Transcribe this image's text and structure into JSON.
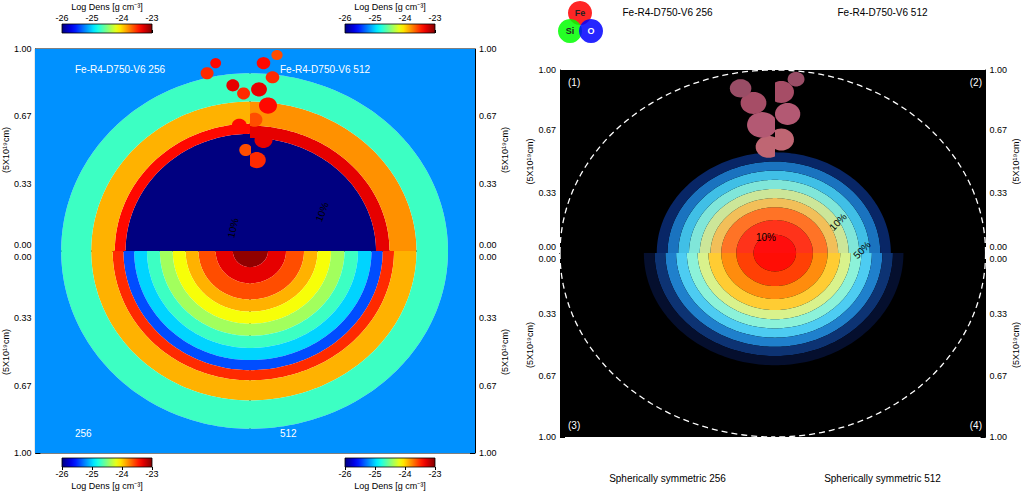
{
  "chart_data": [
    {
      "type": "density_map",
      "xlim": [
        0,
        1
      ],
      "xticks": [
        0,
        0.33,
        0.67,
        1
      ],
      "ylim": [
        0,
        1
      ],
      "yticks": [
        {
          "value": 0,
          "label": "0.00"
        },
        {
          "value": 0.33,
          "label": "0.33"
        },
        {
          "value": 0.67,
          "label": "0.67"
        },
        {
          "value": 1,
          "label": "1.00"
        }
      ],
      "y_label": "(5X10¹⁹cm)",
      "tick_labels": "y",
      "colorbar": {
        "title": "Log Dens [g cm⁻³]",
        "range": [
          -26,
          -23
        ],
        "ticks": [
          -26,
          -25,
          -24,
          -23
        ]
      },
      "quadrants": [
        {
          "title": "Fe-R4-D750-V6 256",
          "profile": {
            "r": [
              0.58,
              0.63,
              0.74,
              0.88,
              1.42
            ],
            "values": [
              -26,
              -23.4,
              -23.9,
              -24.7,
              -25.2
            ]
          },
          "clumps": [
            [
              0.2,
              0.88,
              0.03,
              -23.5
            ],
            [
              0.16,
              0.93,
              0.025,
              -23.4
            ],
            [
              0.02,
              0.5,
              0.03,
              -23.6
            ],
            [
              0.05,
              0.62,
              0.035,
              -23.4
            ],
            [
              0.03,
              0.78,
              0.03,
              -23.5
            ],
            [
              0.08,
              0.82,
              0.03,
              -23.3
            ]
          ]
        },
        {
          "title": "Fe-R4-D750-V6 512",
          "profile": {
            "r": [
              0.56,
              0.62,
              0.74,
              0.88,
              1.42
            ],
            "values": [
              -26,
              -23.3,
              -23.8,
              -24.7,
              -25.2
            ]
          },
          "clumps": [
            [
              0.03,
              0.45,
              0.04,
              -23.5
            ],
            [
              0.06,
              0.55,
              0.04,
              -23.3
            ],
            [
              0.02,
              0.65,
              0.035,
              -23.6
            ],
            [
              0.08,
              0.72,
              0.04,
              -23.4
            ],
            [
              0.04,
              0.8,
              0.035,
              -23.3
            ],
            [
              0.1,
              0.86,
              0.03,
              -23.5
            ],
            [
              0.06,
              0.93,
              0.03,
              -23.4
            ],
            [
              0.12,
              0.97,
              0.025,
              -23.6
            ]
          ]
        },
        {
          "title": "256",
          "profile": {
            "r": [
              0.08,
              0.16,
              0.24,
              0.3,
              0.36,
              0.42,
              0.48,
              0.54,
              0.59,
              0.64,
              0.74,
              0.88,
              1.42
            ],
            "values": [
              -23.05,
              -23.3,
              -23.6,
              -23.9,
              -24.15,
              -24.4,
              -24.7,
              -25.0,
              -25.4,
              -23.5,
              -23.9,
              -24.7,
              -25.2
            ]
          },
          "clumps": []
        },
        {
          "title": "512",
          "profile": {
            "r": [
              0.08,
              0.16,
              0.24,
              0.3,
              0.36,
              0.42,
              0.48,
              0.54,
              0.59,
              0.64,
              0.74,
              0.88,
              1.42
            ],
            "values": [
              -23.05,
              -23.3,
              -23.6,
              -23.9,
              -24.15,
              -24.4,
              -24.7,
              -25.0,
              -25.4,
              -23.5,
              -23.9,
              -24.7,
              -25.2
            ]
          },
          "clumps": []
        }
      ],
      "annotations": [
        "10%",
        "10%"
      ]
    },
    {
      "type": "composition_map",
      "xlim": [
        0,
        1
      ],
      "xticks": [
        0,
        0.33,
        0.67,
        1
      ],
      "ylim": [
        0,
        1
      ],
      "yticks": [
        {
          "value": 0,
          "label": "0.00"
        },
        {
          "value": 0.33,
          "label": "0.33"
        },
        {
          "value": 0.67,
          "label": "0.67"
        },
        {
          "value": 1,
          "label": "1.00"
        }
      ],
      "y_label": "(5X10¹⁹cm)",
      "tick_labels": "y",
      "series": [
        {
          "name": "Fe",
          "color": "#ff0000"
        },
        {
          "name": "Si",
          "color": "#00ff00"
        },
        {
          "name": "O",
          "color": "#0000ff"
        }
      ],
      "shock_radius": 1,
      "quadrants": [
        {
          "label": "(1)",
          "title": "Fe-R4-D750-V6 256",
          "profile": {
            "r": [
              0.1,
              0.18,
              0.25,
              0.3,
              0.35,
              0.4,
              0.45,
              0.5,
              0.55
            ],
            "Fe": [
              1,
              1,
              1,
              0.95,
              0.8,
              0.5,
              0.25,
              0.1,
              0.03
            ],
            "Si": [
              0.05,
              0.2,
              0.45,
              0.75,
              0.9,
              0.9,
              0.75,
              0.45,
              0.15
            ],
            "O": [
              0.05,
              0.1,
              0.15,
              0.35,
              0.6,
              0.85,
              0.9,
              0.75,
              0.4
            ]
          },
          "clumps": [
            [
              0.03,
              0.58,
              0.06,
              0.75,
              0.4,
              0.45
            ],
            [
              0.06,
              0.7,
              0.07,
              0.7,
              0.35,
              0.45
            ],
            [
              0.1,
              0.82,
              0.06,
              0.65,
              0.3,
              0.4
            ],
            [
              0.16,
              0.9,
              0.05,
              0.6,
              0.3,
              0.4
            ]
          ]
        },
        {
          "label": "(2)",
          "title": "Fe-R4-D750-V6 512",
          "profile": {
            "r": [
              0.1,
              0.18,
              0.25,
              0.3,
              0.35,
              0.4,
              0.45,
              0.5,
              0.55
            ],
            "Fe": [
              1,
              1,
              1,
              0.95,
              0.8,
              0.5,
              0.25,
              0.1,
              0.03
            ],
            "Si": [
              0.05,
              0.2,
              0.45,
              0.75,
              0.9,
              0.9,
              0.75,
              0.45,
              0.15
            ],
            "O": [
              0.05,
              0.1,
              0.15,
              0.35,
              0.6,
              0.85,
              0.9,
              0.75,
              0.4
            ]
          },
          "clumps": [
            [
              0.03,
              0.62,
              0.06,
              0.75,
              0.4,
              0.45
            ],
            [
              0.06,
              0.76,
              0.06,
              0.7,
              0.35,
              0.45
            ],
            [
              0.03,
              0.88,
              0.06,
              0.65,
              0.3,
              0.4
            ],
            [
              0.1,
              0.95,
              0.04,
              0.6,
              0.3,
              0.4
            ]
          ]
        },
        {
          "label": "(3)",
          "caption": "Spherically symmetric 256",
          "profile": {
            "r": [
              0.1,
              0.18,
              0.25,
              0.31,
              0.36,
              0.41,
              0.46,
              0.51,
              0.56,
              0.61
            ],
            "Fe": [
              1,
              1,
              1,
              1,
              0.85,
              0.55,
              0.3,
              0.12,
              0.05,
              0.02
            ],
            "Si": [
              0.05,
              0.25,
              0.55,
              0.8,
              0.95,
              0.95,
              0.8,
              0.5,
              0.2,
              0.06
            ],
            "O": [
              0.02,
              0.02,
              0.05,
              0.2,
              0.55,
              0.85,
              0.95,
              0.8,
              0.45,
              0.18
            ]
          },
          "clumps": []
        },
        {
          "label": "(4)",
          "caption": "Spherically symmetric 512",
          "profile": {
            "r": [
              0.1,
              0.18,
              0.25,
              0.31,
              0.36,
              0.41,
              0.46,
              0.51,
              0.56,
              0.61
            ],
            "Fe": [
              1,
              1,
              1,
              1,
              0.85,
              0.55,
              0.3,
              0.12,
              0.05,
              0.02
            ],
            "Si": [
              0.05,
              0.25,
              0.55,
              0.8,
              0.95,
              0.95,
              0.8,
              0.5,
              0.2,
              0.06
            ],
            "O": [
              0.02,
              0.02,
              0.05,
              0.2,
              0.55,
              0.85,
              0.95,
              0.8,
              0.45,
              0.18
            ]
          },
          "clumps": []
        }
      ],
      "annotations": [
        "10%",
        "10%",
        "50%"
      ]
    }
  ]
}
